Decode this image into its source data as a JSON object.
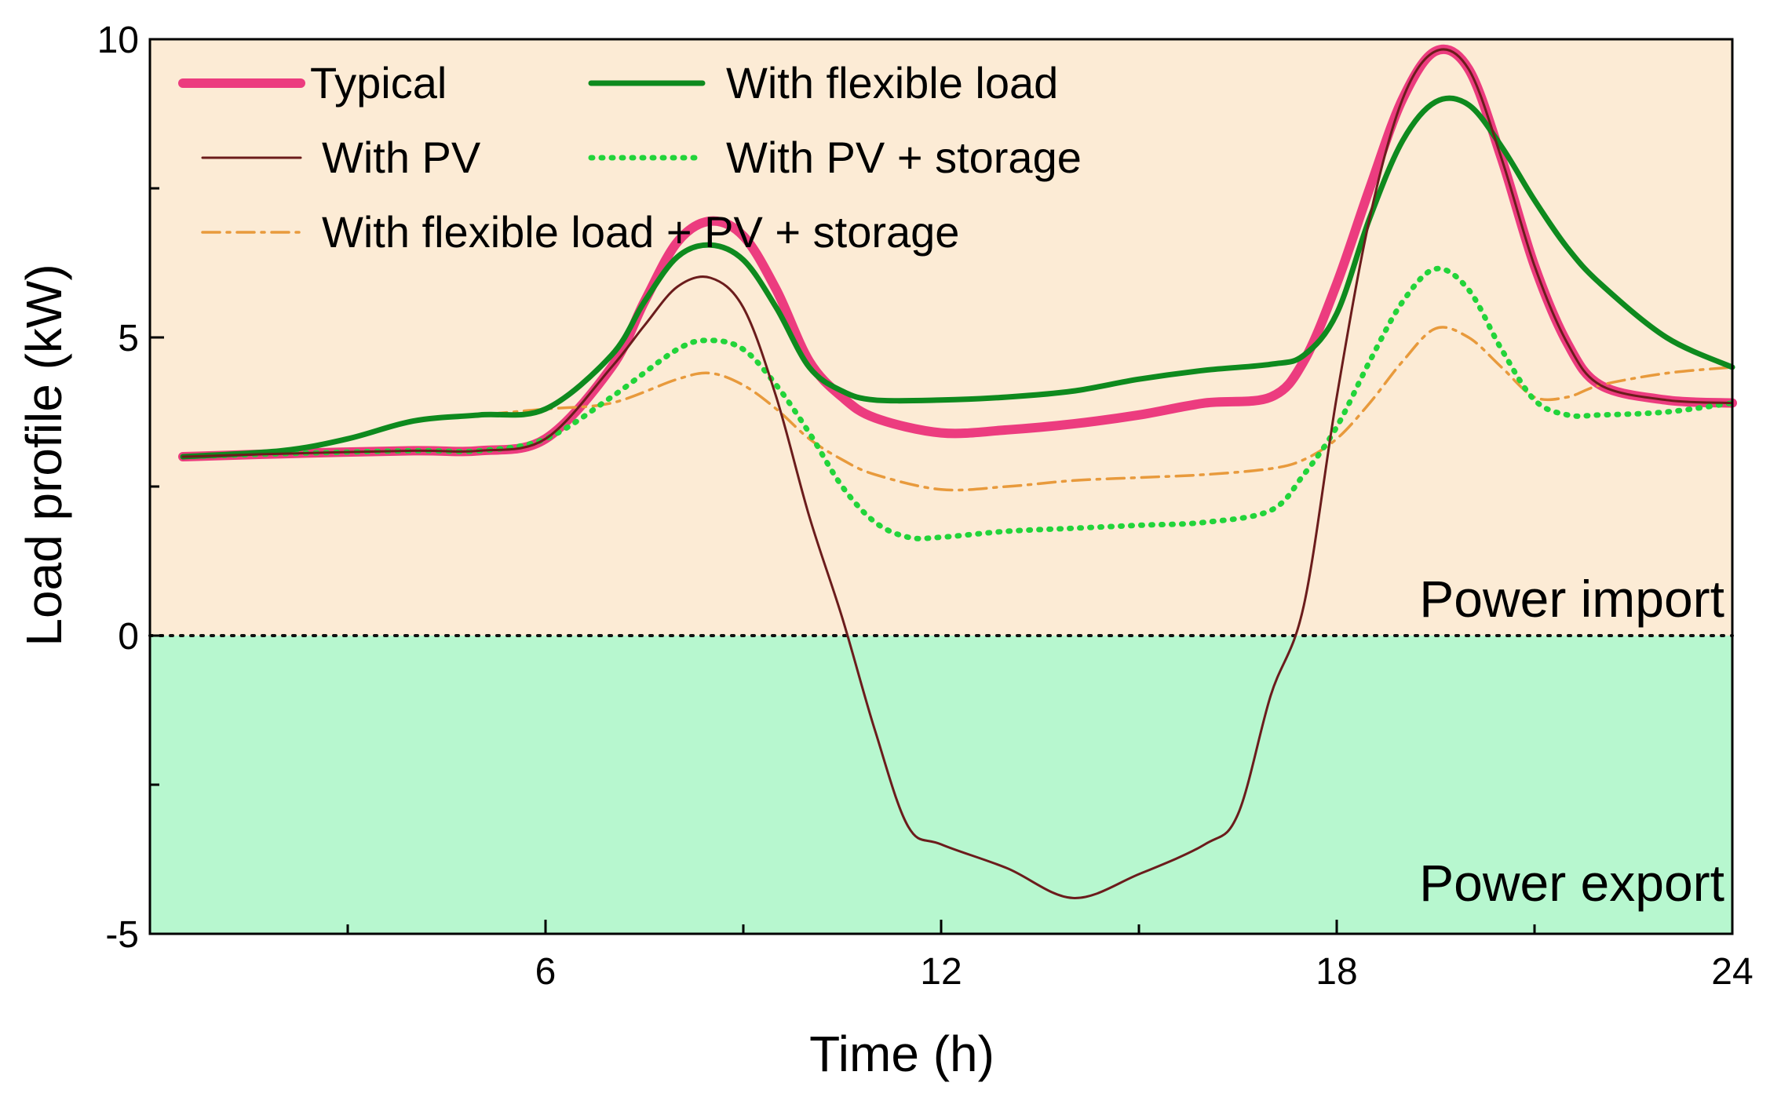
{
  "chart_data": {
    "type": "line",
    "title": "",
    "xlabel": "Time (h)",
    "ylabel": "Load profile (kW)",
    "xlim": [
      0,
      24
    ],
    "ylim": [
      -5,
      10
    ],
    "xticks": [
      {
        "value": 6,
        "label": "6"
      },
      {
        "value": 12,
        "label": "12"
      },
      {
        "value": 18,
        "label": "18"
      },
      {
        "value": 24,
        "label": "24"
      }
    ],
    "xminor": [
      3,
      9,
      15,
      21
    ],
    "yticks": [
      {
        "value": 10,
        "label": "10"
      },
      {
        "value": 5,
        "label": "5"
      },
      {
        "value": 0,
        "label": "0"
      },
      {
        "value": -5,
        "label": "-5"
      }
    ],
    "yminor": [
      7.5,
      2.5,
      -2.5
    ],
    "zero_line": true,
    "regions": [
      {
        "name": "Power import",
        "from": 0,
        "to": 10,
        "color": "#FCEBD5"
      },
      {
        "name": "Power export",
        "from": -5,
        "to": 0,
        "color": "#B7F7CF"
      }
    ],
    "legend_position": "top-left",
    "series": [
      {
        "name": "Typical",
        "color": "#EC3C7F",
        "style": "solid-thick",
        "points": [
          [
            0.5,
            3.0
          ],
          [
            2,
            3.05
          ],
          [
            4,
            3.1
          ],
          [
            5,
            3.1
          ],
          [
            6,
            3.3
          ],
          [
            7,
            4.5
          ],
          [
            7.5,
            5.6
          ],
          [
            8,
            6.6
          ],
          [
            8.5,
            6.95
          ],
          [
            9,
            6.7
          ],
          [
            9.5,
            5.8
          ],
          [
            10,
            4.6
          ],
          [
            10.5,
            4.0
          ],
          [
            11,
            3.65
          ],
          [
            12,
            3.4
          ],
          [
            13,
            3.45
          ],
          [
            14,
            3.55
          ],
          [
            15,
            3.7
          ],
          [
            16,
            3.9
          ],
          [
            17,
            4.0
          ],
          [
            17.5,
            4.6
          ],
          [
            18,
            5.9
          ],
          [
            18.5,
            7.5
          ],
          [
            19,
            9.0
          ],
          [
            19.5,
            9.8
          ],
          [
            20,
            9.5
          ],
          [
            20.5,
            8.0
          ],
          [
            21,
            6.2
          ],
          [
            21.5,
            4.9
          ],
          [
            22,
            4.2
          ],
          [
            23,
            3.95
          ],
          [
            24,
            3.9
          ]
        ]
      },
      {
        "name": "With flexible load",
        "color": "#0E8A1E",
        "style": "solid",
        "points": [
          [
            0.5,
            3.0
          ],
          [
            2,
            3.1
          ],
          [
            3,
            3.3
          ],
          [
            4,
            3.6
          ],
          [
            5,
            3.7
          ],
          [
            6,
            3.8
          ],
          [
            7,
            4.7
          ],
          [
            7.5,
            5.6
          ],
          [
            8,
            6.35
          ],
          [
            8.5,
            6.55
          ],
          [
            9,
            6.3
          ],
          [
            9.5,
            5.5
          ],
          [
            10,
            4.5
          ],
          [
            10.5,
            4.1
          ],
          [
            11,
            3.95
          ],
          [
            12,
            3.95
          ],
          [
            13,
            4.0
          ],
          [
            14,
            4.1
          ],
          [
            15,
            4.3
          ],
          [
            16,
            4.45
          ],
          [
            17,
            4.55
          ],
          [
            17.5,
            4.7
          ],
          [
            18,
            5.4
          ],
          [
            18.5,
            7.0
          ],
          [
            19,
            8.3
          ],
          [
            19.5,
            8.95
          ],
          [
            20,
            8.9
          ],
          [
            20.5,
            8.2
          ],
          [
            21,
            7.3
          ],
          [
            21.5,
            6.5
          ],
          [
            22,
            5.9
          ],
          [
            23,
            5.0
          ],
          [
            24,
            4.5
          ]
        ]
      },
      {
        "name": "With PV",
        "color": "#6B1C1C",
        "style": "solid-thin",
        "points": [
          [
            0.5,
            3.0
          ],
          [
            2,
            3.05
          ],
          [
            4,
            3.1
          ],
          [
            5,
            3.1
          ],
          [
            6,
            3.3
          ],
          [
            7,
            4.5
          ],
          [
            7.5,
            5.2
          ],
          [
            8,
            5.85
          ],
          [
            8.5,
            6.0
          ],
          [
            9,
            5.5
          ],
          [
            9.5,
            4.0
          ],
          [
            10,
            2.0
          ],
          [
            10.5,
            0.3
          ],
          [
            11,
            -1.6
          ],
          [
            11.5,
            -3.2
          ],
          [
            12,
            -3.5
          ],
          [
            13,
            -3.9
          ],
          [
            14,
            -4.4
          ],
          [
            15,
            -4.0
          ],
          [
            16,
            -3.5
          ],
          [
            16.5,
            -3.0
          ],
          [
            17,
            -1.0
          ],
          [
            17.5,
            0.5
          ],
          [
            18,
            4.0
          ],
          [
            18.5,
            7.0
          ],
          [
            19,
            9.0
          ],
          [
            19.5,
            9.8
          ],
          [
            20,
            9.5
          ],
          [
            20.5,
            8.0
          ],
          [
            21,
            6.2
          ],
          [
            21.5,
            4.9
          ],
          [
            22,
            4.2
          ],
          [
            23,
            3.95
          ],
          [
            24,
            3.9
          ]
        ]
      },
      {
        "name": "With PV + storage",
        "color": "#22D43A",
        "style": "dotted",
        "points": [
          [
            0.5,
            3.0
          ],
          [
            2,
            3.05
          ],
          [
            4,
            3.1
          ],
          [
            5,
            3.1
          ],
          [
            6,
            3.3
          ],
          [
            7,
            4.0
          ],
          [
            8,
            4.8
          ],
          [
            8.5,
            4.95
          ],
          [
            9,
            4.8
          ],
          [
            9.5,
            4.2
          ],
          [
            10,
            3.4
          ],
          [
            10.5,
            2.5
          ],
          [
            11,
            1.9
          ],
          [
            11.5,
            1.65
          ],
          [
            12,
            1.65
          ],
          [
            13,
            1.75
          ],
          [
            14,
            1.8
          ],
          [
            15,
            1.85
          ],
          [
            16,
            1.9
          ],
          [
            17,
            2.1
          ],
          [
            17.5,
            2.7
          ],
          [
            18,
            3.5
          ],
          [
            18.5,
            4.6
          ],
          [
            19,
            5.6
          ],
          [
            19.5,
            6.15
          ],
          [
            20,
            5.8
          ],
          [
            20.5,
            4.8
          ],
          [
            21,
            3.95
          ],
          [
            21.5,
            3.7
          ],
          [
            22,
            3.7
          ],
          [
            23,
            3.75
          ],
          [
            24,
            3.9
          ]
        ]
      },
      {
        "name": "With flexible load + PV + storage",
        "color": "#E89A3C",
        "style": "dash-dot",
        "points": [
          [
            0.5,
            3.0
          ],
          [
            2,
            3.1
          ],
          [
            3,
            3.3
          ],
          [
            4,
            3.6
          ],
          [
            5,
            3.7
          ],
          [
            6,
            3.8
          ],
          [
            7,
            3.9
          ],
          [
            8,
            4.3
          ],
          [
            8.5,
            4.4
          ],
          [
            9,
            4.2
          ],
          [
            9.5,
            3.8
          ],
          [
            10,
            3.3
          ],
          [
            10.5,
            2.95
          ],
          [
            11,
            2.7
          ],
          [
            12,
            2.45
          ],
          [
            13,
            2.5
          ],
          [
            14,
            2.6
          ],
          [
            15,
            2.65
          ],
          [
            16,
            2.7
          ],
          [
            17,
            2.8
          ],
          [
            17.5,
            2.95
          ],
          [
            18,
            3.3
          ],
          [
            18.5,
            3.9
          ],
          [
            19,
            4.6
          ],
          [
            19.5,
            5.15
          ],
          [
            20,
            5.0
          ],
          [
            20.5,
            4.5
          ],
          [
            21,
            4.0
          ],
          [
            21.5,
            4.0
          ],
          [
            22,
            4.2
          ],
          [
            23,
            4.4
          ],
          [
            24,
            4.5
          ]
        ]
      }
    ]
  }
}
